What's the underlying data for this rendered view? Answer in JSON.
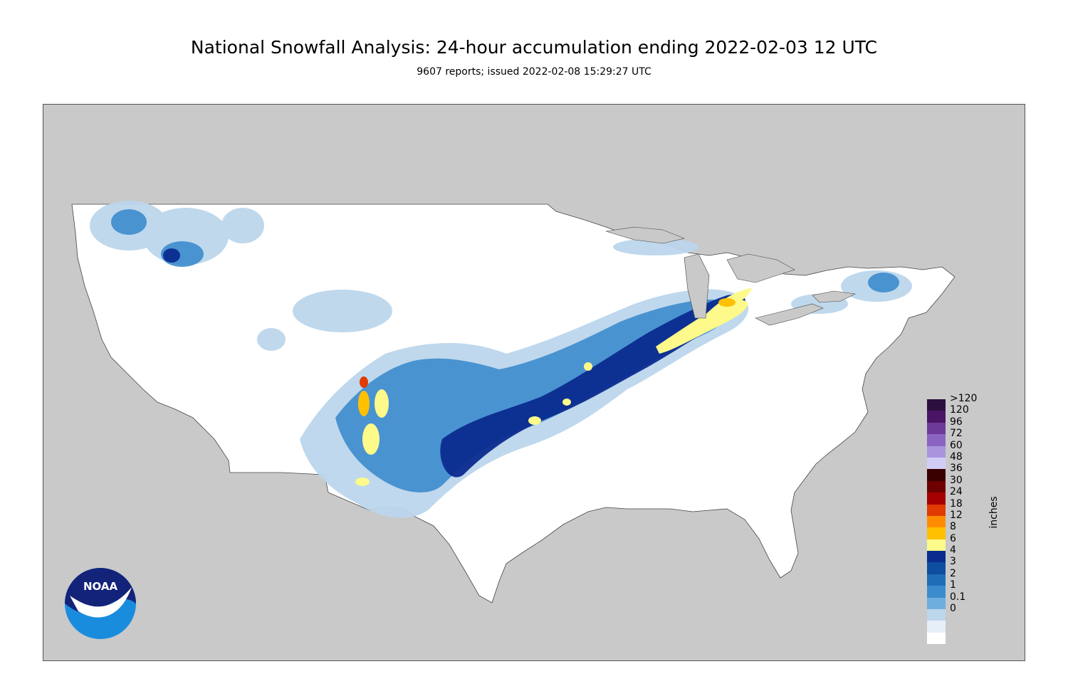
{
  "header": {
    "title": "National Snowfall Analysis: 24-hour accumulation ending 2022-02-03 12 UTC",
    "subtitle": "9607 reports; issued 2022-02-08 15:29:27 UTC"
  },
  "map": {
    "land_color": "#ffffff",
    "outside_color": "#c9c9c9",
    "border_color": "#555555"
  },
  "legend": {
    "unit": "inches",
    "bins": [
      {
        "label": ">120",
        "color": "#2d0f3f"
      },
      {
        "label": "120",
        "color": "#4a1566"
      },
      {
        "label": "96",
        "color": "#6e3a9a"
      },
      {
        "label": "72",
        "color": "#8a64c0"
      },
      {
        "label": "60",
        "color": "#aa95dc"
      },
      {
        "label": "48",
        "color": "#d2cdf7"
      },
      {
        "label": "36",
        "color": "#3a0000"
      },
      {
        "label": "30",
        "color": "#6d0000"
      },
      {
        "label": "24",
        "color": "#a60000"
      },
      {
        "label": "18",
        "color": "#e03b00"
      },
      {
        "label": "12",
        "color": "#ff8c00"
      },
      {
        "label": "8",
        "color": "#ffc000"
      },
      {
        "label": "6",
        "color": "#fdf98a"
      },
      {
        "label": "4",
        "color": "#0b2b8f"
      },
      {
        "label": "3",
        "color": "#0d4ea0"
      },
      {
        "label": "2",
        "color": "#1f6db6"
      },
      {
        "label": "1",
        "color": "#3c8ccd"
      },
      {
        "label": "0.1",
        "color": "#6eaede"
      },
      {
        "label": "0",
        "color": "#bcd6ec"
      },
      {
        "label": "",
        "color": "#e6eef8"
      },
      {
        "label": "",
        "color": "#ffffff"
      }
    ]
  },
  "logo": {
    "text": "NOAA",
    "icon": "noaa-logo-icon"
  }
}
